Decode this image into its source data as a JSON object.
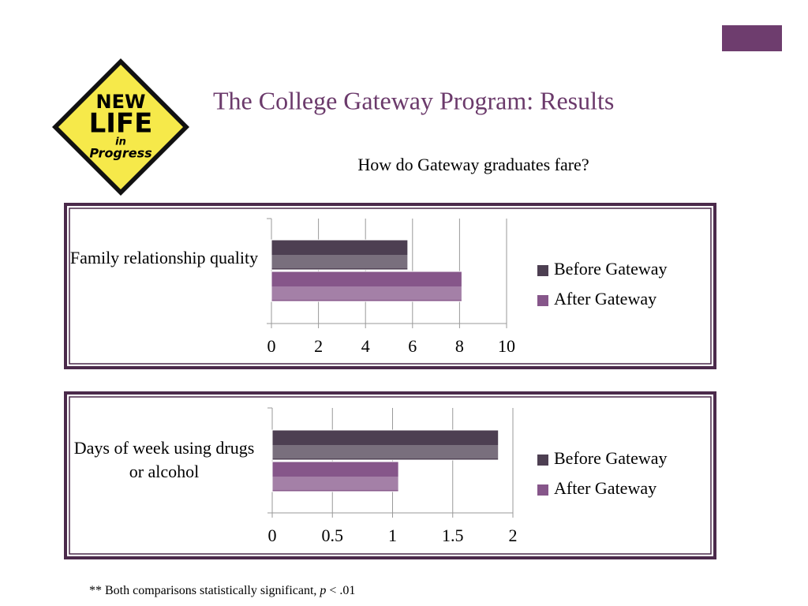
{
  "slide": {
    "title": "The College Gateway Program: Results",
    "subtitle": "How do Gateway graduates fare?",
    "logo": [
      "NEW",
      "LIFE",
      "in",
      "Progress"
    ],
    "footnote": [
      "** Both comparisons statistically significant, ",
      "p",
      " < .01"
    ]
  },
  "chart_data": [
    {
      "type": "hbar",
      "categories": [
        "Family relationship quality"
      ],
      "series": [
        {
          "name": "Before Gateway",
          "color": "#4d3f52",
          "values": [
            5.8
          ]
        },
        {
          "name": "After Gateway",
          "color": "#86568a",
          "values": [
            8.1
          ]
        }
      ],
      "xlim": [
        0,
        10
      ],
      "xticks": [
        0,
        2,
        4,
        6,
        8,
        10
      ],
      "grid": true
    },
    {
      "type": "hbar",
      "categories": [
        "Days of week using drugs or alcohol"
      ],
      "series": [
        {
          "name": "Before Gateway",
          "color": "#4d3f52",
          "values": [
            1.88
          ]
        },
        {
          "name": "After Gateway",
          "color": "#86568a",
          "values": [
            1.05
          ]
        }
      ],
      "xlim": [
        0,
        2
      ],
      "xticks": [
        0,
        0.5,
        1,
        1.5,
        2
      ],
      "grid": true
    }
  ]
}
